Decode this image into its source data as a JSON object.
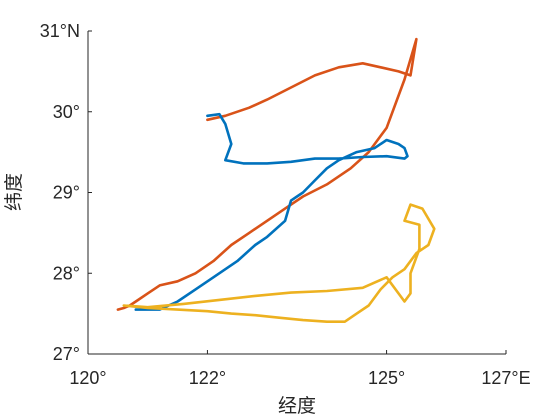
{
  "chart_data": {
    "type": "line",
    "title": "",
    "xlabel": "经度",
    "ylabel": "纬度",
    "xlim": [
      120,
      127
    ],
    "ylim": [
      27,
      31
    ],
    "x_ticks": [
      {
        "value": 120,
        "label": "120°"
      },
      {
        "value": 122,
        "label": "122°"
      },
      {
        "value": 125,
        "label": "125°"
      },
      {
        "value": 127,
        "label": "127°E"
      }
    ],
    "y_ticks": [
      {
        "value": 27,
        "label": "27°"
      },
      {
        "value": 28,
        "label": "28°"
      },
      {
        "value": 29,
        "label": "29°"
      },
      {
        "value": 30,
        "label": "30°"
      },
      {
        "value": 31,
        "label": "31°N"
      }
    ],
    "grid": false,
    "legend": "none",
    "series": [
      {
        "color": "#D95319",
        "x": [
          122.0,
          122.3,
          122.7,
          123.0,
          123.4,
          123.8,
          124.2,
          124.6,
          124.9,
          125.2,
          125.4,
          125.5,
          125.3,
          125.0,
          124.7,
          124.4,
          124.0,
          123.6,
          123.3,
          123.0,
          122.7,
          122.4,
          122.1,
          121.8,
          121.5,
          121.2,
          121.0,
          120.8,
          120.7,
          120.6,
          120.5
        ],
        "y": [
          29.9,
          29.95,
          30.05,
          30.15,
          30.3,
          30.45,
          30.55,
          30.6,
          30.55,
          30.5,
          30.45,
          30.9,
          30.4,
          29.8,
          29.5,
          29.3,
          29.1,
          28.95,
          28.8,
          28.65,
          28.5,
          28.35,
          28.15,
          28.0,
          27.9,
          27.85,
          27.75,
          27.65,
          27.6,
          27.57,
          27.55
        ]
      },
      {
        "color": "#0072BD",
        "x": [
          120.8,
          121.2,
          121.5,
          121.8,
          122.1,
          122.5,
          122.8,
          123.0,
          123.3,
          123.4,
          123.5,
          123.6,
          123.8,
          124.0,
          124.2,
          124.5,
          124.8,
          125.0,
          125.2,
          125.3,
          125.35,
          125.3,
          125.0,
          124.6,
          124.2,
          123.8,
          123.4,
          123.0,
          122.6,
          122.3,
          122.4,
          122.3,
          122.2,
          122.0
        ],
        "y": [
          27.55,
          27.55,
          27.65,
          27.8,
          27.95,
          28.15,
          28.35,
          28.45,
          28.65,
          28.9,
          28.95,
          29.0,
          29.15,
          29.3,
          29.4,
          29.5,
          29.55,
          29.65,
          29.6,
          29.55,
          29.45,
          29.42,
          29.45,
          29.44,
          29.42,
          29.42,
          29.38,
          29.36,
          29.36,
          29.4,
          29.6,
          29.85,
          29.97,
          29.95
        ]
      },
      {
        "color": "#EDB120",
        "x": [
          120.6,
          121.0,
          121.6,
          122.2,
          122.8,
          123.4,
          124.0,
          124.6,
          125.0,
          125.2,
          125.3,
          125.4,
          125.4,
          125.55,
          125.55,
          125.3,
          125.4,
          125.6,
          125.8,
          125.7,
          125.5,
          125.3,
          125.1,
          124.9,
          124.7,
          124.5,
          124.3,
          124.0,
          123.6,
          123.2,
          122.8,
          122.4,
          122.0,
          121.5,
          121.0,
          120.6
        ],
        "y": [
          27.6,
          27.58,
          27.62,
          27.67,
          27.72,
          27.76,
          27.78,
          27.82,
          27.95,
          27.75,
          27.65,
          27.75,
          28.0,
          28.3,
          28.6,
          28.65,
          28.85,
          28.8,
          28.55,
          28.35,
          28.25,
          28.05,
          27.95,
          27.8,
          27.6,
          27.5,
          27.4,
          27.4,
          27.42,
          27.45,
          27.48,
          27.5,
          27.53,
          27.55,
          27.57,
          27.6
        ]
      }
    ]
  }
}
